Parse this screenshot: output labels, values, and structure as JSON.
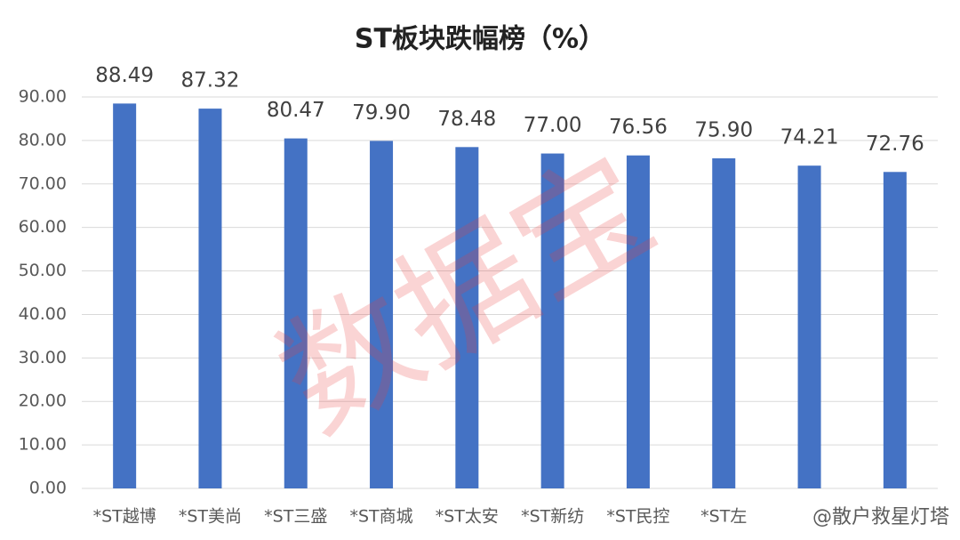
{
  "chart_data": {
    "type": "bar",
    "title": "ST板块跌幅榜（%）",
    "categories": [
      "*ST越博",
      "*ST美尚",
      "*ST三盛",
      "*ST商城",
      "*ST太安",
      "*ST新纺",
      "*ST民控",
      "*ST左",
      null,
      null
    ],
    "values": [
      88.49,
      87.32,
      80.47,
      79.9,
      78.48,
      77.0,
      76.56,
      75.9,
      74.21,
      72.76
    ],
    "value_labels": [
      "88.49",
      "87.32",
      "80.47",
      "79.90",
      "78.48",
      "77.00",
      "76.56",
      "75.90",
      "74.21",
      "72.76"
    ],
    "color": "#4472c4",
    "ylim": [
      0,
      90
    ],
    "yticks": [
      {
        "value": 0,
        "label": "0.00"
      },
      {
        "value": 10,
        "label": "10.00"
      },
      {
        "value": 20,
        "label": "20.00"
      },
      {
        "value": 30,
        "label": "30.00"
      },
      {
        "value": 40,
        "label": "40.00"
      },
      {
        "value": 50,
        "label": "50.00"
      },
      {
        "value": 60,
        "label": "60.00"
      },
      {
        "value": 70,
        "label": "70.00"
      },
      {
        "value": 80,
        "label": "80.00"
      },
      {
        "value": 90,
        "label": "90.00"
      }
    ],
    "grid": true,
    "watermark": "数据宝",
    "credit": "@散户救星灯塔"
  }
}
